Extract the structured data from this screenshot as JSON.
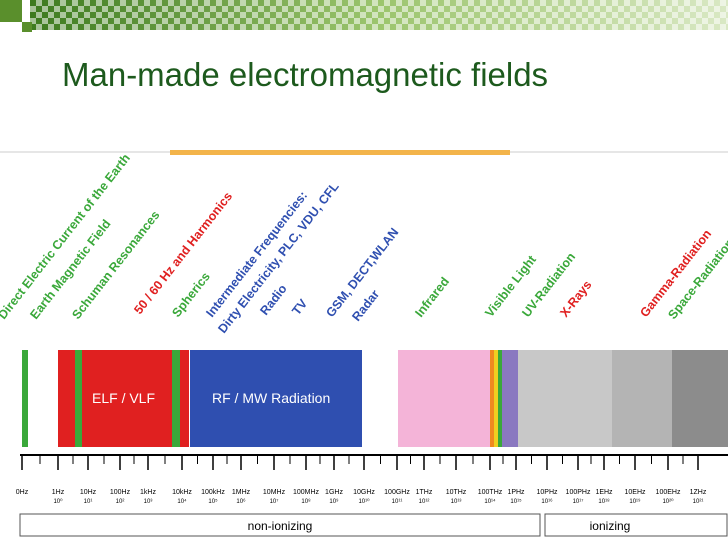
{
  "header": {
    "title": "Man-made electromagnetic fields"
  },
  "sources": [
    "Direct Electric Current of the Earth",
    "Earth Magnetic Field",
    "Schuman Resonances",
    "50 / 60 Hz and Harmonics",
    "Spherics",
    "Intermediate Frequencies:",
    "Dirty Electricity, PLC, VDU, CFL",
    "Radio",
    "TV",
    "GSM, DECT,WLAN",
    "Radar",
    "Infrared",
    "Visible Light",
    "UV-Radiation",
    "X-Rays",
    "Gamma-Radiation",
    "Space-Radiation"
  ],
  "bands": [
    "ELF / VLF",
    "RF / MW Radiation"
  ],
  "frequencies": [
    {
      "label": "0Hz"
    },
    {
      "label": "1Hz",
      "power": "10⁰"
    },
    {
      "label": "10Hz",
      "power": "10¹"
    },
    {
      "label": "100Hz",
      "power": "10²"
    },
    {
      "label": "1kHz",
      "power": "10³"
    },
    {
      "label": "10kHz",
      "power": "10⁴"
    },
    {
      "label": "100kHz",
      "power": "10⁵"
    },
    {
      "label": "1MHz",
      "power": "10⁶"
    },
    {
      "label": "10MHz",
      "power": "10⁷"
    },
    {
      "label": "100MHz",
      "power": "10⁸"
    },
    {
      "label": "1GHz",
      "power": "10⁹"
    },
    {
      "label": "10GHz",
      "power": "10¹⁰"
    },
    {
      "label": "100GHz",
      "power": "10¹¹"
    },
    {
      "label": "1THz",
      "power": "10¹²"
    },
    {
      "label": "10THz",
      "power": "10¹³"
    },
    {
      "label": "100THz",
      "power": "10¹⁴"
    },
    {
      "label": "1PHz",
      "power": "10¹⁵"
    },
    {
      "label": "10PHz",
      "power": "10¹⁶"
    },
    {
      "label": "100PHz",
      "power": "10¹⁷"
    },
    {
      "label": "1EHz",
      "power": "10¹⁸"
    },
    {
      "label": "10EHz",
      "power": "10¹⁹"
    },
    {
      "label": "100EHz",
      "power": "10²⁰"
    },
    {
      "label": "1ZHz",
      "power": "10²¹"
    }
  ],
  "regions": [
    "non-ionizing",
    "ionizing"
  ]
}
